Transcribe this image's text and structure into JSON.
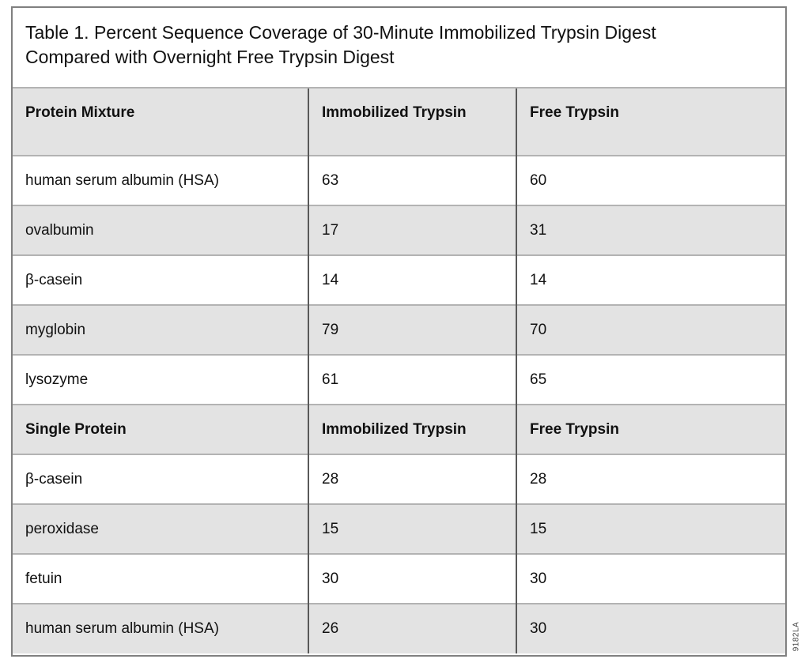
{
  "title": {
    "line1": "Table 1. Percent Sequence Coverage of 30-Minute Immobilized Trypsin Digest",
    "line2": "Compared with Overnight Free Trypsin Digest"
  },
  "watermark": "9182LA",
  "colors": {
    "stripe_bg": "#e3e3e3",
    "frame_border": "#808080",
    "column_divider": "#595959",
    "row_divider": "#b3b3b3"
  },
  "table": {
    "sections": [
      {
        "header": [
          "Protein Mixture",
          "Immobilized Trypsin",
          "Free Trypsin"
        ],
        "rows": [
          [
            "human serum albumin (HSA)",
            "63",
            "60"
          ],
          [
            "ovalbumin",
            "17",
            "31"
          ],
          [
            "β-casein",
            "14",
            "14"
          ],
          [
            "myglobin",
            "79",
            "70"
          ],
          [
            "lysozyme",
            "61",
            "65"
          ]
        ]
      },
      {
        "header": [
          "Single Protein",
          "Immobilized Trypsin",
          "Free Trypsin"
        ],
        "rows": [
          [
            "β-casein",
            "28",
            "28"
          ],
          [
            "peroxidase",
            "15",
            "15"
          ],
          [
            "fetuin",
            "30",
            "30"
          ],
          [
            "human serum albumin (HSA)",
            "26",
            "30"
          ]
        ]
      }
    ]
  }
}
